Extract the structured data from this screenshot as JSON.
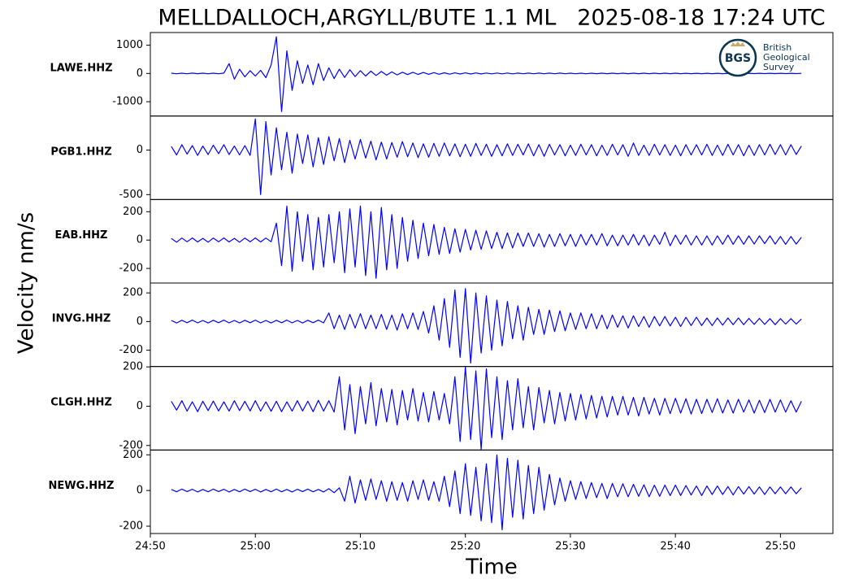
{
  "chart_data": {
    "type": "seismogram",
    "title": "MELLDALLOCH,ARGYLL/BUTE 1.1 ML   2025-08-18 17:24 UTC",
    "xlabel": "Time",
    "ylabel": "Velocity nm/s",
    "color": "#0000ff",
    "logo": {
      "mark": "BGS",
      "lines": [
        "British",
        "Geological",
        "Survey"
      ]
    },
    "xlim": [
      1490,
      1555
    ],
    "xticks": [
      {
        "value": 1490,
        "label": "24:50"
      },
      {
        "value": 1500,
        "label": "25:00"
      },
      {
        "value": 1510,
        "label": "25:10"
      },
      {
        "value": 1520,
        "label": "25:20"
      },
      {
        "value": 1530,
        "label": "25:30"
      },
      {
        "value": 1540,
        "label": "25:40"
      },
      {
        "value": 1550,
        "label": "25:50"
      }
    ],
    "x": [
      1492,
      1492.5,
      1493,
      1493.5,
      1494,
      1494.5,
      1495,
      1495.5,
      1496,
      1496.5,
      1497,
      1497.5,
      1498,
      1498.5,
      1499,
      1499.5,
      1500,
      1500.5,
      1501,
      1501.5,
      1502,
      1502.5,
      1503,
      1503.5,
      1504,
      1504.5,
      1505,
      1505.5,
      1506,
      1506.5,
      1507,
      1507.5,
      1508,
      1508.5,
      1509,
      1509.5,
      1510,
      1510.5,
      1511,
      1511.5,
      1512,
      1512.5,
      1513,
      1513.5,
      1514,
      1514.5,
      1515,
      1515.5,
      1516,
      1516.5,
      1517,
      1517.5,
      1518,
      1518.5,
      1519,
      1519.5,
      1520,
      1520.5,
      1521,
      1521.5,
      1522,
      1522.5,
      1523,
      1523.5,
      1524,
      1524.5,
      1525,
      1525.5,
      1526,
      1526.5,
      1527,
      1527.5,
      1528,
      1528.5,
      1529,
      1529.5,
      1530,
      1530.5,
      1531,
      1531.5,
      1532,
      1532.5,
      1533,
      1533.5,
      1534,
      1534.5,
      1535,
      1535.5,
      1536,
      1536.5,
      1537,
      1537.5,
      1538,
      1538.5,
      1539,
      1539.5,
      1540,
      1540.5,
      1541,
      1541.5,
      1542,
      1542.5,
      1543,
      1543.5,
      1544,
      1544.5,
      1545,
      1545.5,
      1546,
      1546.5,
      1547,
      1547.5,
      1548,
      1548.5,
      1549,
      1549.5,
      1550,
      1550.5,
      1551,
      1551.5,
      1552
    ],
    "series": [
      {
        "name": "LAWE.HHZ",
        "ylim": [
          -1507,
          1449
        ],
        "yticks": [
          -1000,
          0,
          1000
        ],
        "values": [
          10,
          -12,
          8,
          -10,
          12,
          -9,
          10,
          -11,
          9,
          -10,
          12,
          350,
          -200,
          150,
          -120,
          100,
          -90,
          110,
          -150,
          300,
          1300,
          -1350,
          800,
          -600,
          450,
          -350,
          300,
          -400,
          350,
          -250,
          200,
          -180,
          150,
          -140,
          130,
          -110,
          100,
          -90,
          80,
          -70,
          70,
          -60,
          55,
          -50,
          45,
          -40,
          40,
          -35,
          35,
          -30,
          30,
          -28,
          25,
          -25,
          22,
          -20,
          20,
          -18,
          18,
          -16,
          16,
          -15,
          15,
          -14,
          14,
          -13,
          13,
          -12,
          12,
          -12,
          12,
          -11,
          11,
          -11,
          11,
          -10,
          10,
          -10,
          10,
          -10,
          10,
          -9,
          9,
          -9,
          9,
          -9,
          9,
          -8,
          8,
          -8,
          8,
          -8,
          8,
          -8,
          8,
          -8,
          8,
          -7,
          7,
          -7,
          7,
          -7,
          7,
          -7,
          7,
          -7,
          7,
          -6,
          6,
          -6,
          6,
          -6,
          6,
          -6,
          6,
          -6,
          6,
          -6,
          6,
          -6,
          5
        ]
      },
      {
        "name": "PGB1.HHZ",
        "ylim": [
          -555,
          382
        ],
        "yticks": [
          -500,
          0
        ],
        "values": [
          40,
          -55,
          60,
          -45,
          50,
          -60,
          45,
          -50,
          55,
          -40,
          60,
          -50,
          45,
          -55,
          50,
          -60,
          350,
          -500,
          320,
          -280,
          250,
          -220,
          200,
          -260,
          180,
          -150,
          170,
          -190,
          140,
          -160,
          150,
          -120,
          130,
          -140,
          110,
          -100,
          120,
          -90,
          100,
          -110,
          90,
          -100,
          85,
          -80,
          95,
          -75,
          80,
          -85,
          70,
          -80,
          75,
          -70,
          80,
          -65,
          70,
          -75,
          65,
          -70,
          75,
          -60,
          65,
          -70,
          60,
          -65,
          70,
          -60,
          65,
          -55,
          70,
          -65,
          60,
          -70,
          65,
          -55,
          60,
          -65,
          55,
          -60,
          65,
          -55,
          60,
          -65,
          55,
          -60,
          65,
          -55,
          60,
          -70,
          80,
          -60,
          55,
          -60,
          65,
          -55,
          60,
          -60,
          55,
          -65,
          60,
          -55,
          60,
          -55,
          65,
          -60,
          55,
          -60,
          65,
          -55,
          60,
          -65,
          55,
          -60,
          60,
          -55,
          65,
          -50,
          60,
          -55,
          60,
          -50,
          45
        ]
      },
      {
        "name": "EAB.HHZ",
        "ylim": [
          -303,
          286
        ],
        "yticks": [
          -200,
          0,
          200
        ],
        "values": [
          12,
          -15,
          14,
          -12,
          15,
          -13,
          12,
          -15,
          14,
          -12,
          15,
          -13,
          12,
          -15,
          14,
          -12,
          15,
          -13,
          14,
          -12,
          120,
          -180,
          240,
          -220,
          200,
          -150,
          180,
          -210,
          160,
          -190,
          180,
          -160,
          200,
          -230,
          220,
          -190,
          240,
          -250,
          200,
          -270,
          230,
          -210,
          180,
          -200,
          160,
          -150,
          140,
          -130,
          120,
          -110,
          110,
          -100,
          90,
          -95,
          80,
          -85,
          75,
          -70,
          70,
          -65,
          65,
          -60,
          55,
          -60,
          50,
          -55,
          50,
          -45,
          50,
          -45,
          45,
          -50,
          40,
          -45,
          45,
          -40,
          40,
          -45,
          40,
          -35,
          40,
          -35,
          45,
          -40,
          35,
          -40,
          35,
          -35,
          40,
          -35,
          35,
          -40,
          35,
          -30,
          55,
          -40,
          35,
          -30,
          35,
          -35,
          30,
          -35,
          30,
          -35,
          30,
          -30,
          35,
          -30,
          30,
          -30,
          30,
          -28,
          30,
          -25,
          30,
          -28,
          25,
          -30,
          25,
          -28,
          20
        ]
      },
      {
        "name": "INVG.HHZ",
        "ylim": [
          -314,
          269
        ],
        "yticks": [
          -200,
          0,
          200
        ],
        "values": [
          8,
          -10,
          9,
          -8,
          10,
          -9,
          8,
          -10,
          9,
          -8,
          10,
          -9,
          8,
          -10,
          9,
          -8,
          10,
          -9,
          8,
          -10,
          9,
          -8,
          10,
          -9,
          8,
          -10,
          9,
          -8,
          10,
          -9,
          60,
          -50,
          45,
          -55,
          50,
          -45,
          55,
          -50,
          45,
          -50,
          50,
          -55,
          45,
          -60,
          55,
          -50,
          60,
          -55,
          70,
          -80,
          110,
          -130,
          160,
          -180,
          220,
          -250,
          230,
          -290,
          200,
          -220,
          180,
          -200,
          150,
          -170,
          140,
          -120,
          110,
          -130,
          100,
          -90,
          85,
          -90,
          80,
          -70,
          75,
          -65,
          60,
          -55,
          60,
          -50,
          55,
          -50,
          45,
          -50,
          45,
          -40,
          40,
          -45,
          40,
          -35,
          35,
          -40,
          35,
          -30,
          35,
          -30,
          30,
          -35,
          30,
          -28,
          30,
          -28,
          25,
          -28,
          25,
          -25,
          25,
          -22,
          25,
          -22,
          22,
          -20,
          22,
          -20,
          20,
          -22,
          20,
          -18,
          20,
          -18,
          18
        ]
      },
      {
        "name": "CLGH.HHZ",
        "ylim": [
          -223,
          202
        ],
        "yticks": [
          -200,
          0,
          200
        ],
        "values": [
          25,
          -20,
          28,
          -25,
          22,
          -28,
          25,
          -22,
          26,
          -24,
          22,
          -25,
          28,
          -22,
          25,
          -24,
          28,
          -25,
          22,
          -26,
          25,
          -28,
          22,
          -25,
          28,
          -24,
          25,
          -28,
          30,
          -25,
          28,
          -30,
          150,
          -120,
          110,
          -140,
          100,
          -90,
          120,
          -100,
          90,
          -80,
          85,
          -95,
          80,
          -70,
          90,
          -75,
          70,
          -80,
          75,
          -70,
          65,
          -90,
          150,
          -180,
          200,
          -170,
          180,
          -220,
          190,
          -160,
          150,
          -170,
          130,
          -120,
          140,
          -110,
          100,
          -120,
          95,
          -85,
          80,
          -90,
          70,
          -75,
          65,
          -70,
          60,
          -65,
          55,
          -60,
          50,
          -55,
          50,
          -45,
          50,
          -45,
          45,
          -50,
          45,
          -40,
          40,
          -45,
          40,
          -38,
          40,
          -35,
          38,
          -40,
          35,
          -38,
          35,
          -32,
          38,
          -35,
          32,
          -35,
          35,
          -30,
          32,
          -35,
          30,
          -32,
          35,
          -30,
          32,
          -30,
          28,
          -30,
          25
        ]
      },
      {
        "name": "NEWG.HHZ",
        "ylim": [
          -241,
          227
        ],
        "yticks": [
          -200,
          0,
          200
        ],
        "values": [
          6,
          -7,
          8,
          -6,
          7,
          -8,
          6,
          -7,
          8,
          -6,
          7,
          -8,
          6,
          -7,
          8,
          -6,
          7,
          -8,
          6,
          -7,
          8,
          -7,
          6,
          -8,
          7,
          -6,
          8,
          -7,
          6,
          -8,
          10,
          -12,
          15,
          -60,
          80,
          -70,
          60,
          -55,
          65,
          -50,
          55,
          -60,
          50,
          -55,
          45,
          -60,
          55,
          -50,
          60,
          -55,
          50,
          -60,
          80,
          -90,
          110,
          -130,
          150,
          -140,
          130,
          -170,
          150,
          -180,
          200,
          -220,
          180,
          -150,
          170,
          -160,
          140,
          -130,
          130,
          -110,
          90,
          -80,
          70,
          -60,
          55,
          -50,
          50,
          -45,
          45,
          -40,
          40,
          -45,
          40,
          -35,
          38,
          -35,
          35,
          -32,
          32,
          -35,
          30,
          -32,
          30,
          -28,
          30,
          -28,
          28,
          -25,
          25,
          -28,
          25,
          -22,
          25,
          -22,
          22,
          -25,
          22,
          -20,
          22,
          -20,
          20,
          -22,
          20,
          -18,
          20,
          -18,
          20,
          -18,
          15
        ]
      }
    ]
  }
}
